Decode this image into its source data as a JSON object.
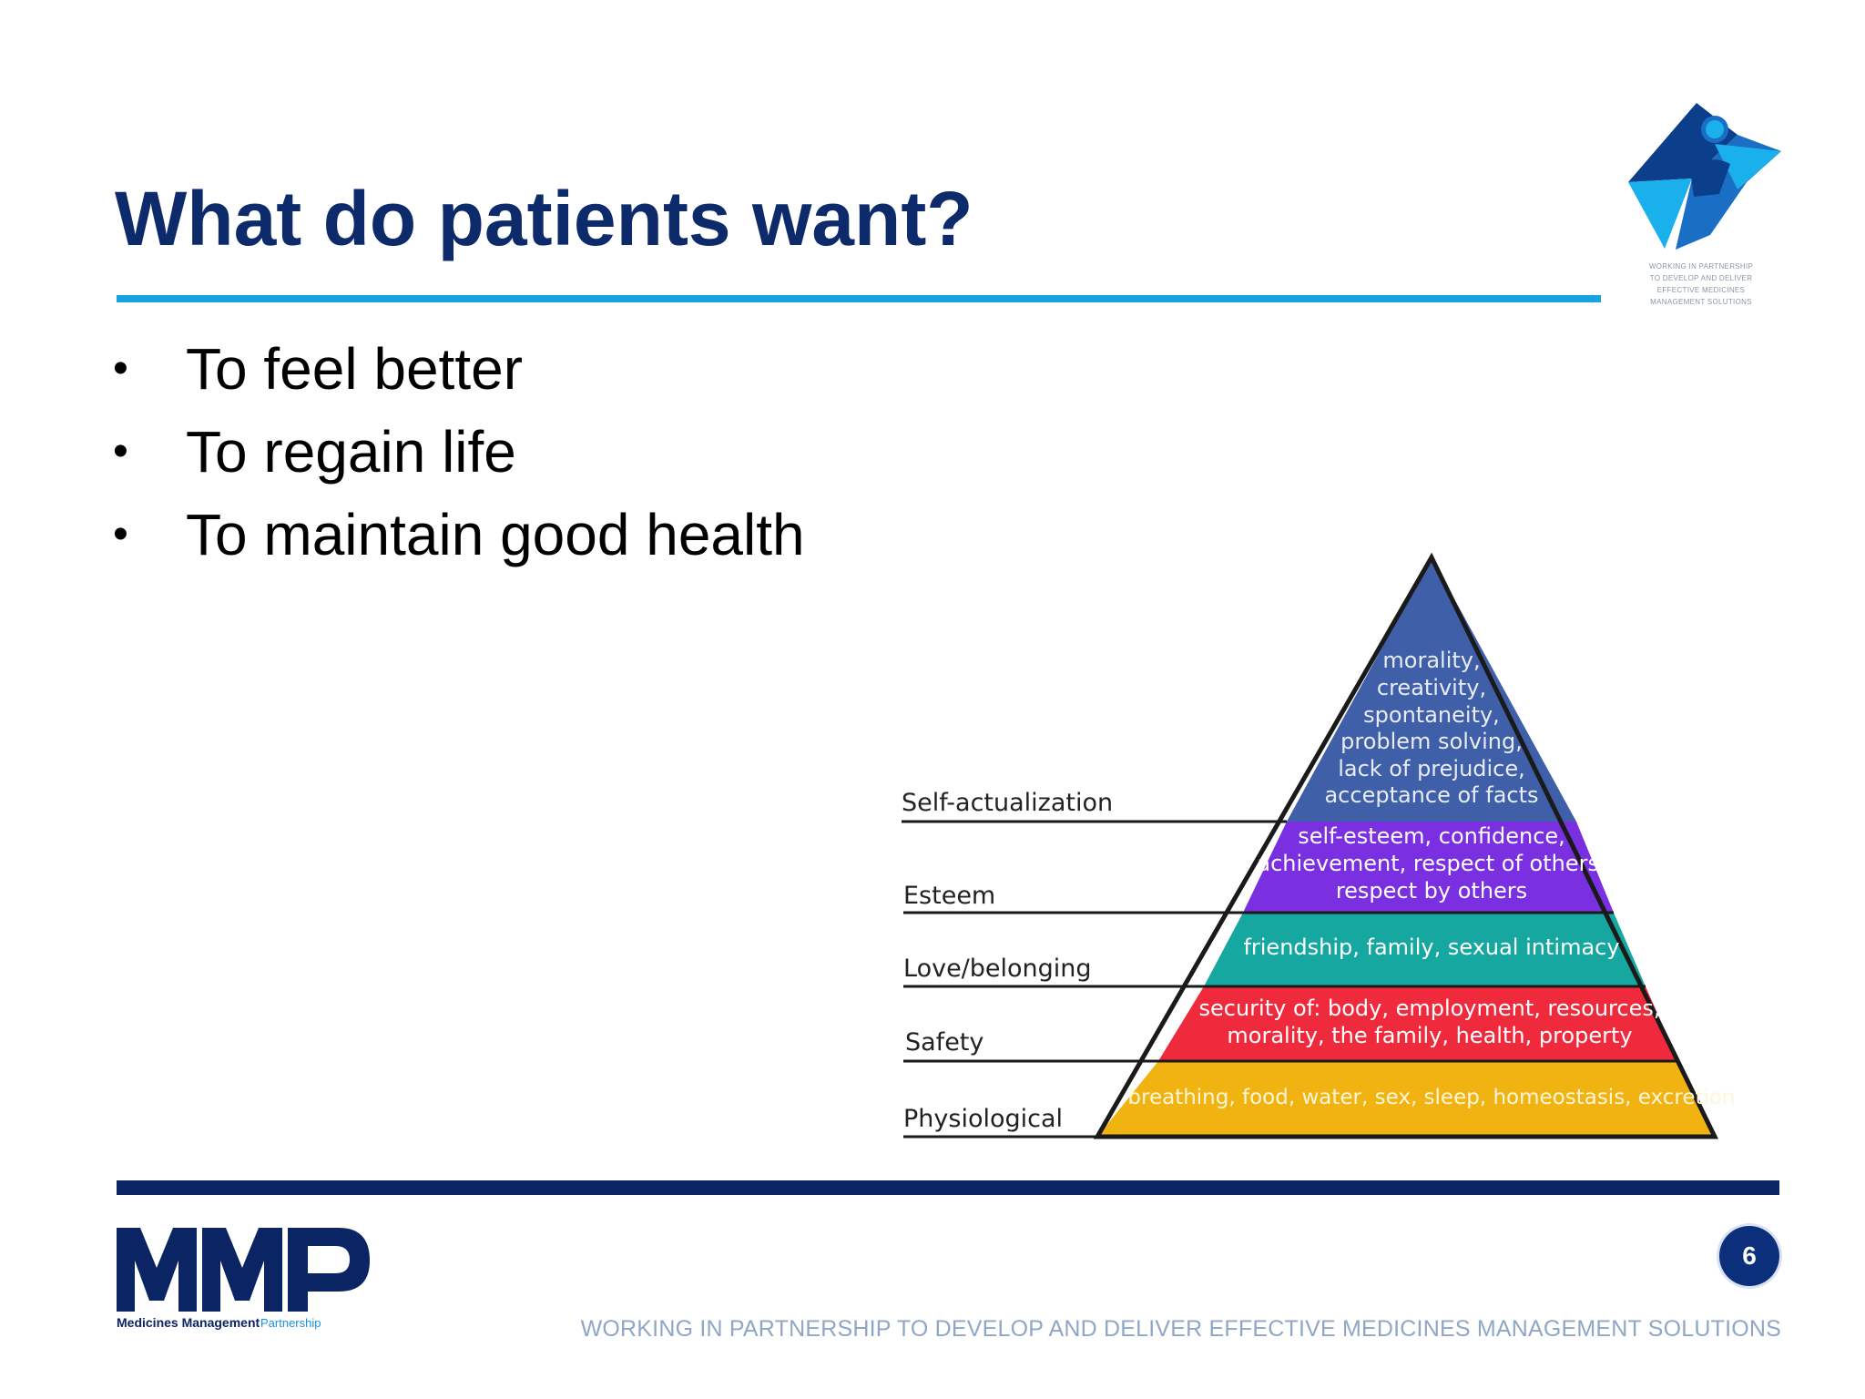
{
  "slide": {
    "title": "What do patients want?",
    "bullets": [
      {
        "text": "To feel better"
      },
      {
        "text": "To regain life"
      },
      {
        "text": "To maintain good health"
      }
    ],
    "bullet_symbol": "•"
  },
  "logo_top": {
    "icon": "star-people-icon",
    "lines": [
      "WORKING IN PARTNERSHIP",
      "TO DEVELOP AND DELIVER",
      "EFFECTIVE MEDICINES",
      "MANAGEMENT SOLUTIONS"
    ],
    "colors": {
      "dark": "#0b3f8c",
      "mid": "#1a6fc4",
      "light": "#1ab0ec"
    }
  },
  "pyramid": {
    "levels": [
      {
        "label": "Self-actualization",
        "lines": [
          "morality,",
          "creativity,",
          "spontaneity,",
          "problem solving,",
          "lack of prejudice,",
          "acceptance of facts"
        ],
        "color": "#3f5fa8"
      },
      {
        "label": "Esteem",
        "lines": [
          "self-esteem, confidence,",
          "achievement, respect of others,",
          "respect by others"
        ],
        "color": "#7a2fe0"
      },
      {
        "label": "Love/belonging",
        "lines": [
          "friendship, family, sexual intimacy"
        ],
        "color": "#15a7a0"
      },
      {
        "label": "Safety",
        "lines": [
          "security of: body, employment, resources,",
          "morality, the family, health, property"
        ],
        "color": "#ef2a3c"
      },
      {
        "label": "Physiological",
        "lines": [
          "breathing, food, water, sex, sleep, homeostasis, excretion"
        ],
        "color": "#f0b312"
      }
    ]
  },
  "footer": {
    "logo_letters": "MMP",
    "logo_name": "Medicines Management",
    "logo_suffix": "Partnership",
    "logo_color": "#0b2463",
    "page_number": "6",
    "tagline": "WORKING IN PARTNERSHIP TO DEVELOP AND DELIVER EFFECTIVE MEDICINES MANAGEMENT SOLUTIONS"
  }
}
